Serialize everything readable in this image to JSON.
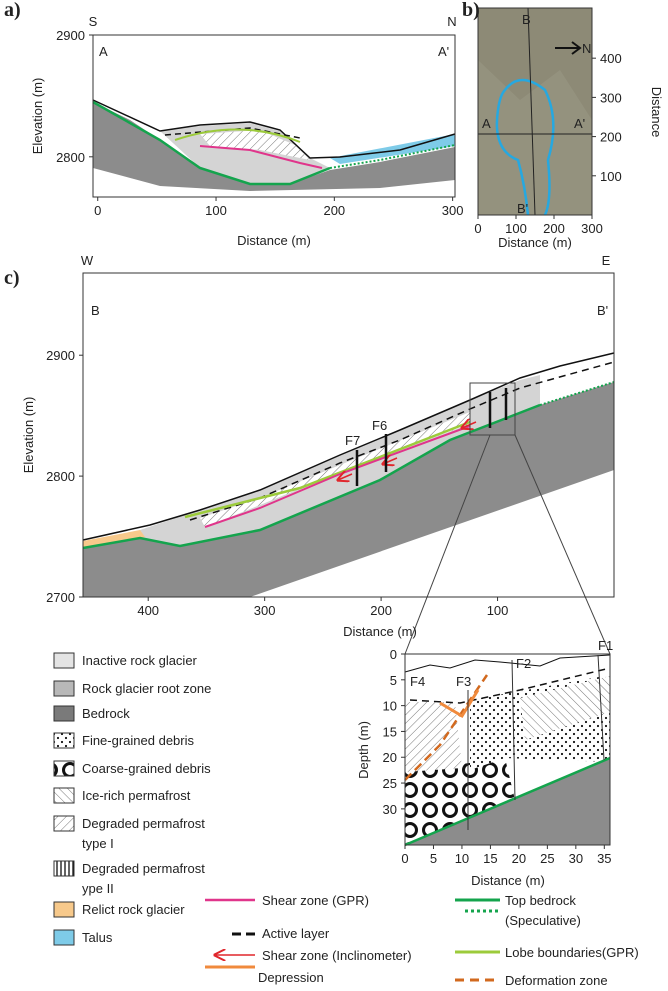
{
  "panels": [
    {
      "label": "a)",
      "corner_left": "S",
      "corner_right": "N",
      "start": "A",
      "end": "A'",
      "xlabel": "Distance (m)",
      "ylabel": "Elevation (m)",
      "xlim": [
        -4,
        302
      ],
      "xticks": [
        0,
        100,
        200,
        300
      ],
      "ylim": [
        2767,
        2900
      ],
      "yticks": [
        2800,
        2900
      ]
    },
    {
      "label": "b)",
      "start": "A",
      "end": "A'",
      "top": "B",
      "bottom": "B'",
      "north": "N",
      "xlabel": "Distance (m)",
      "ylabel": "Distance",
      "xlim": [
        0,
        300
      ],
      "xticks": [
        0,
        100,
        200,
        300
      ],
      "ylim": [
        0,
        528
      ],
      "yticks": [
        100,
        200,
        300,
        400
      ]
    },
    {
      "label": "c)",
      "corner_left": "W",
      "corner_right": "E",
      "start": "B",
      "end": "B'",
      "boreholes": [
        "F7",
        "F6"
      ],
      "xlabel": "Distance (m)",
      "ylabel": "Elevation (m)",
      "xlim": [
        456,
        0
      ],
      "xticks": [
        400,
        300,
        200,
        100
      ],
      "ylim": [
        2700,
        2968
      ],
      "yticks": [
        2700,
        2800,
        2900
      ]
    },
    {
      "boreholes": [
        "F4",
        "F3",
        "F2",
        "F1"
      ],
      "xlabel": "Distance (m)",
      "ylabel": "Depth (m)",
      "xlim": [
        0,
        36
      ],
      "xticks": [
        0,
        5,
        10,
        15,
        20,
        25,
        30,
        35
      ],
      "ylim": [
        37,
        0
      ],
      "yticks": [
        0,
        5,
        10,
        15,
        20,
        25,
        30
      ]
    }
  ],
  "legend": {
    "areas": [
      [
        "Inactive rock glacier"
      ],
      [
        "Rock glacier root zone"
      ],
      [
        "Bedrock"
      ],
      [
        "Fine-grained debris"
      ],
      [
        "Coarse-grained debris"
      ],
      [
        "Ice-rich permafrost"
      ],
      [
        "Degraded permafrost",
        "type I"
      ],
      [
        "Degraded permafrost",
        "ype II"
      ],
      [
        "Relict rock glacier"
      ],
      [
        "Talus"
      ]
    ],
    "lines": [
      "Shear zone (GPR)",
      "Active layer",
      "Shear zone (Inclinometer)",
      "Depression",
      "Top bedrock",
      "(Speculative)",
      "Lobe boundaries(GPR)",
      "Deformation zone"
    ]
  }
}
